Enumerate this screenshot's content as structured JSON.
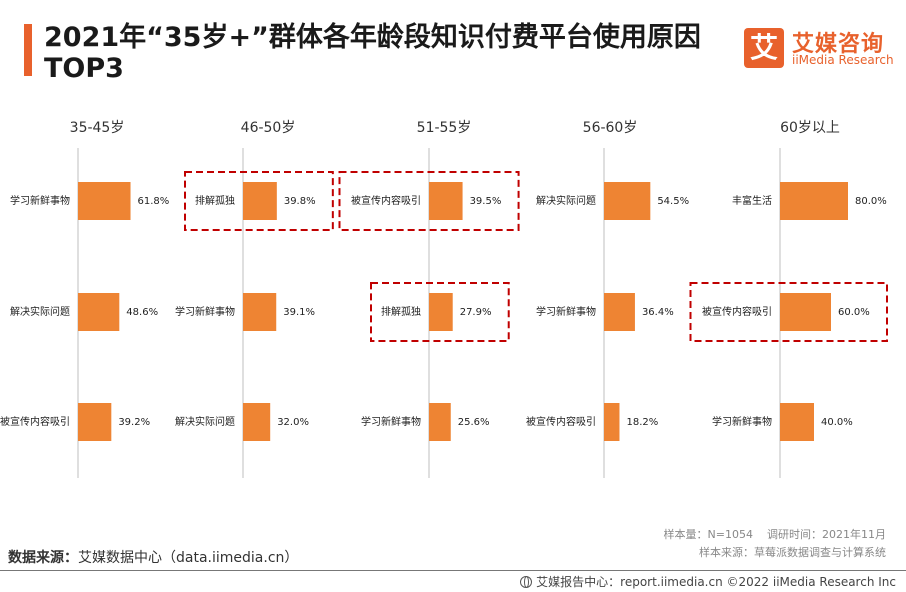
{
  "header": {
    "title": "2021年“35岁+”群体各年龄段知识付费平台使用原因TOP3",
    "logo_mark": "艾",
    "logo_cn": "艾媒咨询",
    "logo_en": "iiMedia Research"
  },
  "footer": {
    "sample_size": "样本量：N=1054",
    "survey_time": "调研时间：2021年11月",
    "sample_source": "样本来源：草莓派数据调查与计算系统",
    "data_source_label": "数据来源：",
    "data_source_value": "艾媒数据中心（data.iimedia.cn）",
    "bottom_line": "艾媒报告中心：report.iimedia.cn ©2022 iiMedia Research Inc"
  },
  "colors": {
    "bar": "#ee8433",
    "accent": "#e8612c",
    "highlight_border": "#c00000",
    "axis": "#bfbfbf"
  },
  "chart_data": [
    {
      "type": "bar",
      "title": "35-45岁",
      "categories": [
        "学习新鲜事物",
        "解决实际问题",
        "被宣传内容吸引"
      ],
      "values": [
        61.8,
        48.6,
        39.2
      ],
      "value_labels": [
        "61.8%",
        "48.6%",
        "39.2%"
      ],
      "highlighted": []
    },
    {
      "type": "bar",
      "title": "46-50岁",
      "categories": [
        "排解孤独",
        "学习新鲜事物",
        "解决实际问题"
      ],
      "values": [
        39.8,
        39.1,
        32.0
      ],
      "value_labels": [
        "39.8%",
        "39.1%",
        "32.0%"
      ],
      "highlighted": [
        "排解孤独"
      ]
    },
    {
      "type": "bar",
      "title": "51-55岁",
      "categories": [
        "被宣传内容吸引",
        "排解孤独",
        "学习新鲜事物"
      ],
      "values": [
        39.5,
        27.9,
        25.6
      ],
      "value_labels": [
        "39.5%",
        "27.9%",
        "25.6%"
      ],
      "highlighted": [
        "被宣传内容吸引",
        "排解孤独"
      ]
    },
    {
      "type": "bar",
      "title": "56-60岁",
      "categories": [
        "解决实际问题",
        "学习新鲜事物",
        "被宣传内容吸引"
      ],
      "values": [
        54.5,
        36.4,
        18.2
      ],
      "value_labels": [
        "54.5%",
        "36.4%",
        "18.2%"
      ],
      "highlighted": []
    },
    {
      "type": "bar",
      "title": "60岁以上",
      "categories": [
        "丰富生活",
        "被宣传内容吸引",
        "学习新鲜事物"
      ],
      "values": [
        80.0,
        60.0,
        40.0
      ],
      "value_labels": [
        "80.0%",
        "60.0%",
        "40.0%"
      ],
      "highlighted": [
        "被宣传内容吸引"
      ]
    }
  ]
}
